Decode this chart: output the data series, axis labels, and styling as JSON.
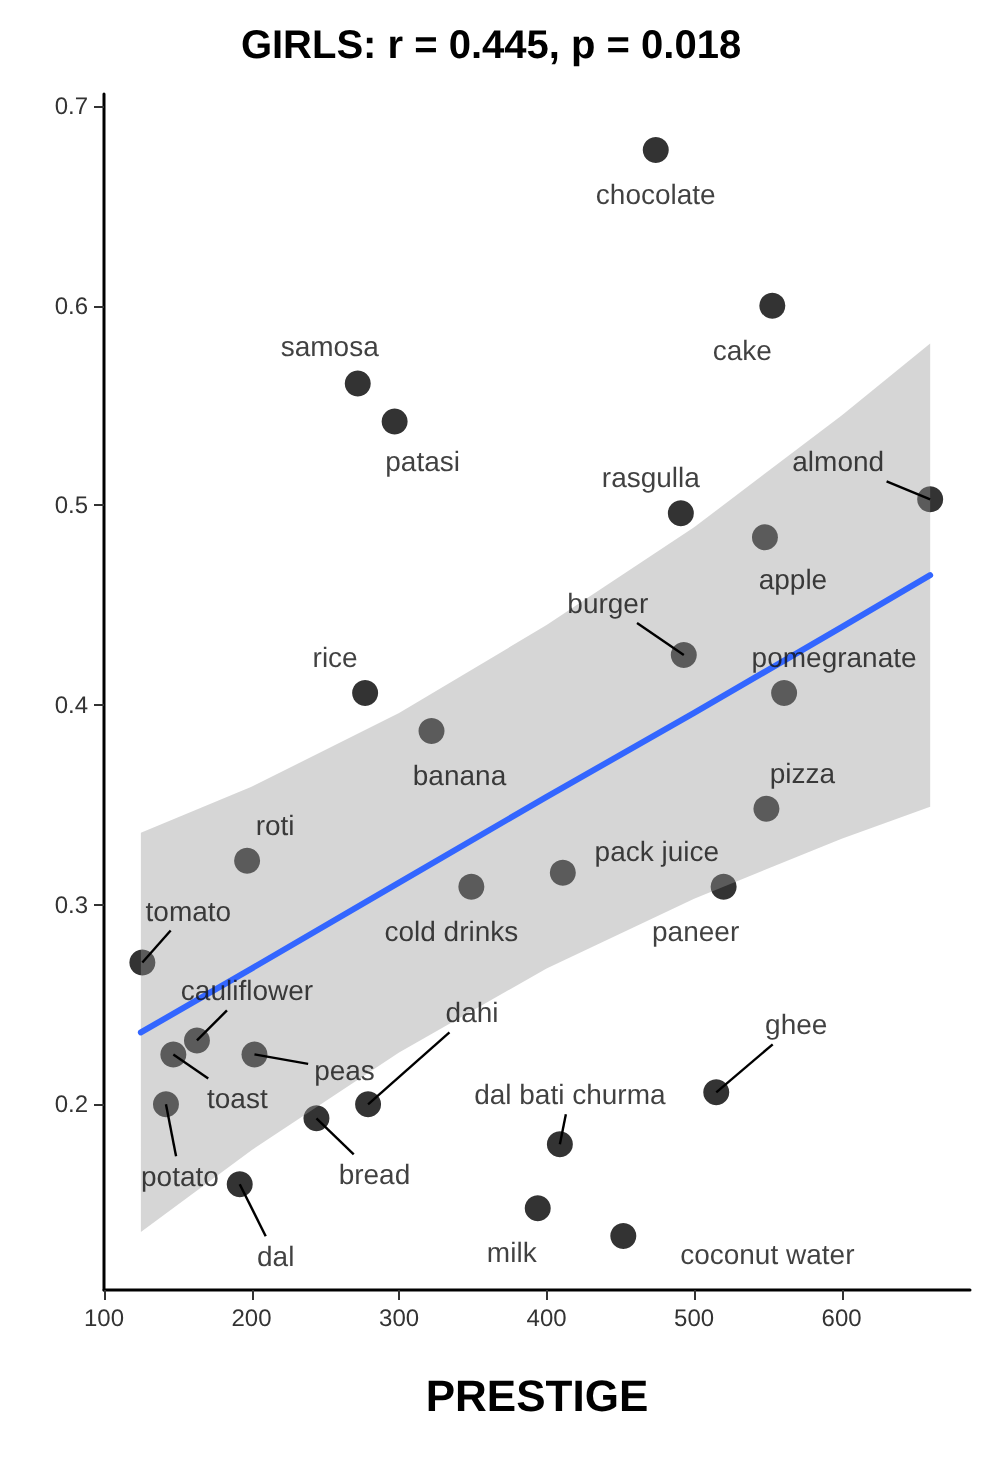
{
  "chart_data": {
    "type": "scatter",
    "title": "GIRLS: r = 0.445, p = 0.018",
    "xlabel": "PRESTIGE",
    "xlim": [
      100,
      687
    ],
    "ylim": [
      0.107,
      0.706
    ],
    "xticks": [
      100,
      200,
      300,
      400,
      500,
      600
    ],
    "yticks": [
      0.2,
      0.3,
      0.4,
      0.5,
      0.6,
      0.7
    ],
    "grid": false,
    "marker": "circle",
    "series": [
      {
        "color": "#000000",
        "x": [
          474,
          553,
          272,
          297,
          491,
          548,
          660,
          493,
          561,
          277,
          322,
          197,
          349,
          411,
          520,
          549,
          126,
          163,
          147,
          202,
          142,
          192,
          244,
          279,
          409,
          394,
          452,
          515
        ],
        "values": [
          0.678,
          0.6,
          0.561,
          0.542,
          0.496,
          0.484,
          0.503,
          0.425,
          0.406,
          0.406,
          0.387,
          0.322,
          0.309,
          0.316,
          0.309,
          0.348,
          0.271,
          0.232,
          0.225,
          0.225,
          0.2,
          0.16,
          0.193,
          0.2,
          0.18,
          0.148,
          0.134,
          0.206
        ]
      },
      {
        "type": "line",
        "color": "#3366ff",
        "marker": "none",
        "line_style": "solid",
        "x": [
          125,
          200,
          300,
          400,
          500,
          600,
          660
        ],
        "values": [
          0.236,
          0.268,
          0.311,
          0.354,
          0.396,
          0.439,
          0.465
        ],
        "lower": [
          0.136,
          0.177,
          0.226,
          0.268,
          0.303,
          0.333,
          0.349
        ],
        "upper": [
          0.336,
          0.359,
          0.396,
          0.44,
          0.489,
          0.545,
          0.581
        ]
      }
    ],
    "annotations": [
      {
        "text": "chocolate",
        "x": 474,
        "y": 0.678
      },
      {
        "text": "cake",
        "x": 553,
        "y": 0.6
      },
      {
        "text": "samosa",
        "x": 272,
        "y": 0.561
      },
      {
        "text": "patasi",
        "x": 297,
        "y": 0.542
      },
      {
        "text": "rasgulla",
        "x": 491,
        "y": 0.496
      },
      {
        "text": "apple",
        "x": 548,
        "y": 0.484
      },
      {
        "text": "almond",
        "x": 660,
        "y": 0.503
      },
      {
        "text": "burger",
        "x": 493,
        "y": 0.425
      },
      {
        "text": "pomegranate",
        "x": 561,
        "y": 0.406
      },
      {
        "text": "rice",
        "x": 277,
        "y": 0.406
      },
      {
        "text": "banana",
        "x": 322,
        "y": 0.387
      },
      {
        "text": "roti",
        "x": 197,
        "y": 0.322
      },
      {
        "text": "cold drinks",
        "x": 349,
        "y": 0.309
      },
      {
        "text": "pack juice",
        "x": 411,
        "y": 0.316
      },
      {
        "text": "paneer",
        "x": 520,
        "y": 0.309
      },
      {
        "text": "pizza",
        "x": 549,
        "y": 0.348
      },
      {
        "text": "tomato",
        "x": 126,
        "y": 0.271
      },
      {
        "text": "cauliflower",
        "x": 163,
        "y": 0.232
      },
      {
        "text": "toast",
        "x": 147,
        "y": 0.225
      },
      {
        "text": "peas",
        "x": 202,
        "y": 0.225
      },
      {
        "text": "potato",
        "x": 142,
        "y": 0.2
      },
      {
        "text": "dal",
        "x": 192,
        "y": 0.16
      },
      {
        "text": "bread",
        "x": 244,
        "y": 0.193
      },
      {
        "text": "dahi",
        "x": 279,
        "y": 0.2
      },
      {
        "text": "dal bati churma",
        "x": 409,
        "y": 0.18
      },
      {
        "text": "milk",
        "x": 394,
        "y": 0.148
      },
      {
        "text": "coconut water",
        "x": 452,
        "y": 0.134
      },
      {
        "text": "ghee",
        "x": 515,
        "y": 0.206
      }
    ]
  }
}
